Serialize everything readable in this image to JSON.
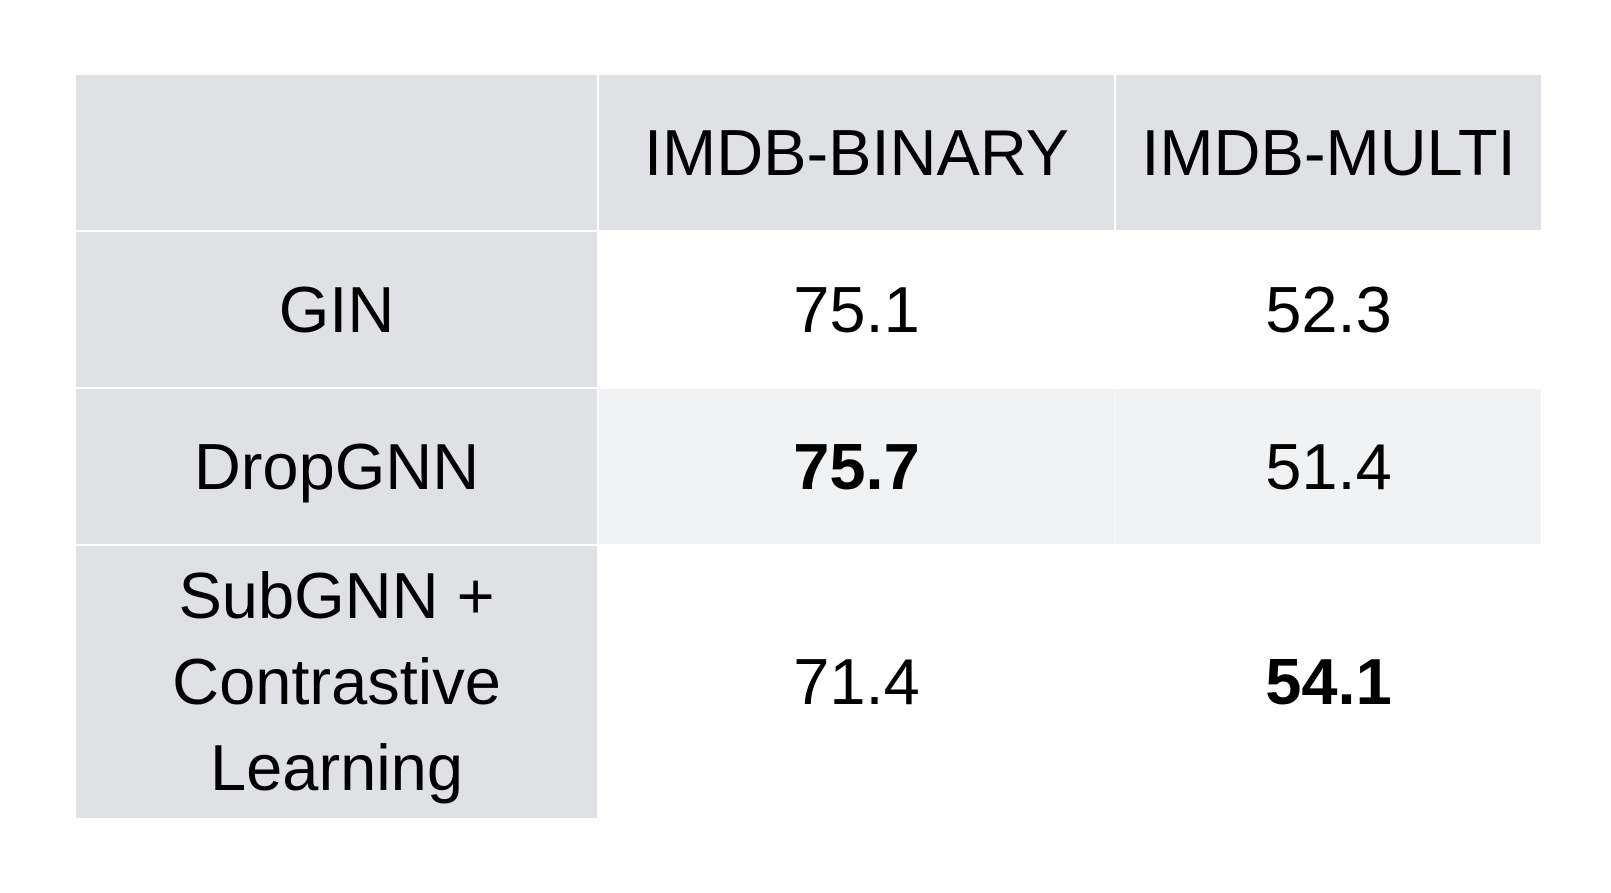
{
  "chart_data": {
    "type": "table",
    "columns": [
      "",
      "IMDB-BINARY",
      "IMDB-MULTI"
    ],
    "rows": [
      {
        "label": "GIN",
        "values": [
          "75.1",
          "52.3"
        ],
        "bold": [
          false,
          false
        ]
      },
      {
        "label": "DropGNN",
        "values": [
          "75.7",
          "51.4"
        ],
        "bold": [
          true,
          false
        ]
      },
      {
        "label_lines": [
          "SubGNN +",
          "Contrastive",
          "Learning"
        ],
        "values": [
          "71.4",
          "54.1"
        ],
        "bold": [
          false,
          true
        ]
      }
    ]
  },
  "colors": {
    "header_background": "#dfe1e5",
    "row_label_background": "#dfe1e5",
    "striped_row_background": "#f1f2f4",
    "plain_row_background": "#ffffff"
  }
}
